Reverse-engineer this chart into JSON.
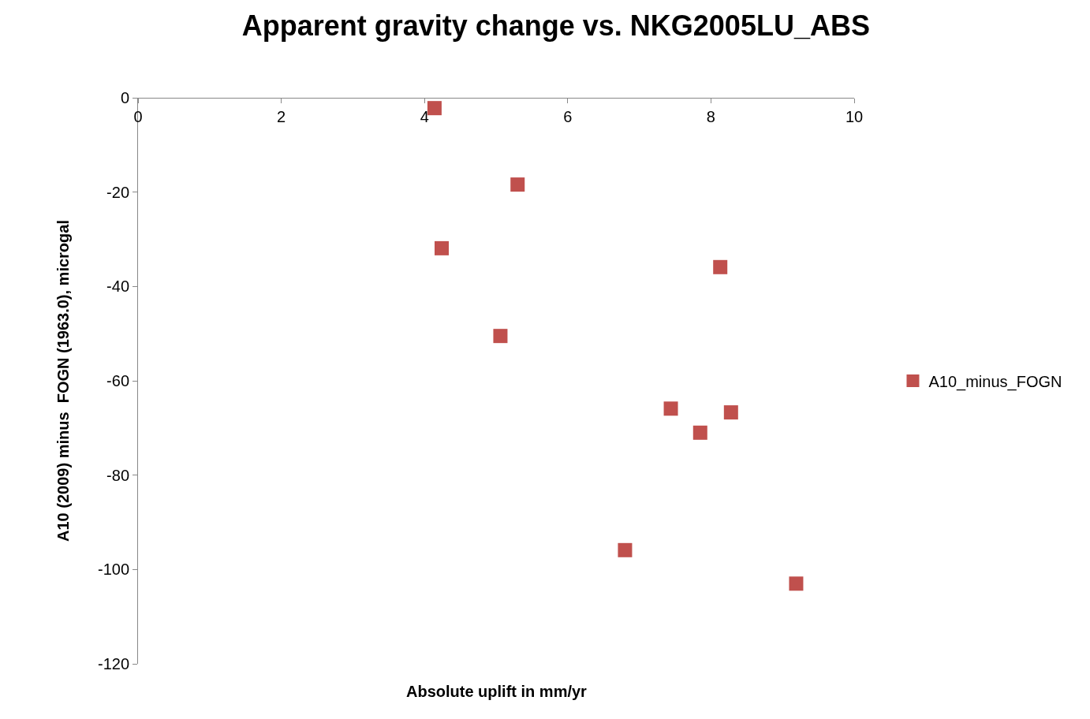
{
  "chart_data": {
    "type": "scatter",
    "title": "Apparent gravity change vs. NKG2005LU_ABS",
    "xlabel": "Absolute uplift in mm/yr",
    "ylabel": "A10 (2009) minus  FOGN (1963.0), microgal",
    "x": [
      4.14,
      5.3,
      4.24,
      8.13,
      5.06,
      7.44,
      8.28,
      7.85,
      6.8,
      9.19
    ],
    "series": [
      {
        "name": "A10_minus_FOGN",
        "color": "#c0504d",
        "values": [
          -2.2,
          -18.4,
          -31.9,
          -35.9,
          -50.5,
          -65.9,
          -66.7,
          -71.0,
          -95.9,
          -103.0
        ]
      }
    ],
    "xlim": [
      0,
      10
    ],
    "xticks": [
      0,
      2,
      4,
      6,
      8,
      10
    ],
    "ylim": [
      -120,
      0
    ],
    "yticks": [
      -120,
      -100,
      -80,
      -60,
      -40,
      -20,
      0
    ],
    "legend": "right",
    "marker": "square"
  }
}
